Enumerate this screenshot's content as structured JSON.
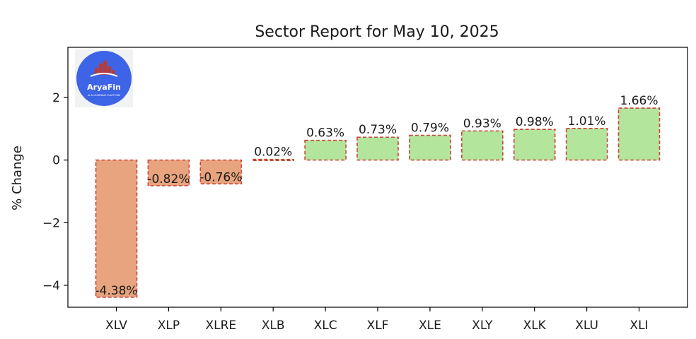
{
  "chart_data": {
    "type": "bar",
    "title": "Sector Report for May 10, 2025",
    "xlabel": "",
    "ylabel": "% Change",
    "categories": [
      "XLV",
      "XLP",
      "XLRE",
      "XLB",
      "XLC",
      "XLF",
      "XLE",
      "XLY",
      "XLK",
      "XLU",
      "XLI"
    ],
    "values": [
      -4.38,
      -0.82,
      -0.76,
      0.02,
      0.63,
      0.73,
      0.79,
      0.93,
      0.98,
      1.01,
      1.66
    ],
    "data_labels": [
      "-4.38%",
      "-0.82%",
      "-0.76%",
      "0.02%",
      "0.63%",
      "0.73%",
      "0.79%",
      "0.93%",
      "0.98%",
      "1.01%",
      "1.66%"
    ],
    "ylim": [
      -4.7,
      3.6
    ],
    "yticks": [
      2,
      0,
      -2,
      -4
    ],
    "ytick_labels": [
      "2",
      "0",
      "−2",
      "−4"
    ],
    "grid": false,
    "colors": {
      "positive": "#b3e59c",
      "negative": "#e8a47e",
      "bar_edge": "#c8453a"
    }
  },
  "logo": {
    "name": "AryaFin",
    "tagline": "AI & LEARNING PLATFORM",
    "background": "#3d63e6"
  }
}
